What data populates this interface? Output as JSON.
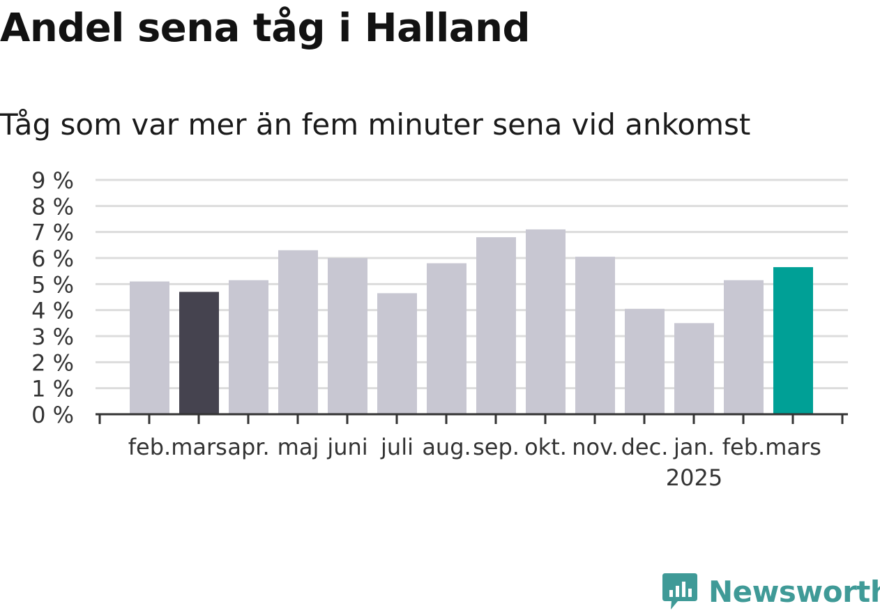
{
  "title": "Andel sena tåg i Halland",
  "subtitle": "Tåg som var mer än fem minuter sena vid ankomst",
  "brand": "Newsworthy",
  "colors": {
    "default": "#c8c7d2",
    "highlight_prev": "#45434f",
    "highlight_current": "#00a096",
    "grid": "#dcdcdc",
    "axis": "#333333",
    "brand": "#3f9a97"
  },
  "chart_data": {
    "type": "bar",
    "categories": [
      "feb.",
      "mars",
      "apr.",
      "maj",
      "juni",
      "juli",
      "aug.",
      "sep.",
      "okt.",
      "nov.",
      "dec.",
      "jan.",
      "feb.",
      "mars"
    ],
    "year_label": "2025",
    "year_label_under": "jan.",
    "values": [
      5.1,
      4.7,
      5.15,
      6.3,
      6.0,
      4.65,
      5.8,
      6.8,
      7.1,
      6.05,
      4.05,
      3.5,
      5.15,
      5.65
    ],
    "highlight": {
      "mars_prev_year": 1,
      "current": 13
    },
    "ylim": [
      0,
      9
    ],
    "yticks": [
      0,
      1,
      2,
      3,
      4,
      5,
      6,
      7,
      8,
      9
    ],
    "ytick_labels": [
      "0 %",
      "1 %",
      "2 %",
      "3 %",
      "4 %",
      "5 %",
      "6 %",
      "7 %",
      "8 %",
      "9 %"
    ],
    "grid": true,
    "xlabel": "",
    "ylabel": ""
  }
}
